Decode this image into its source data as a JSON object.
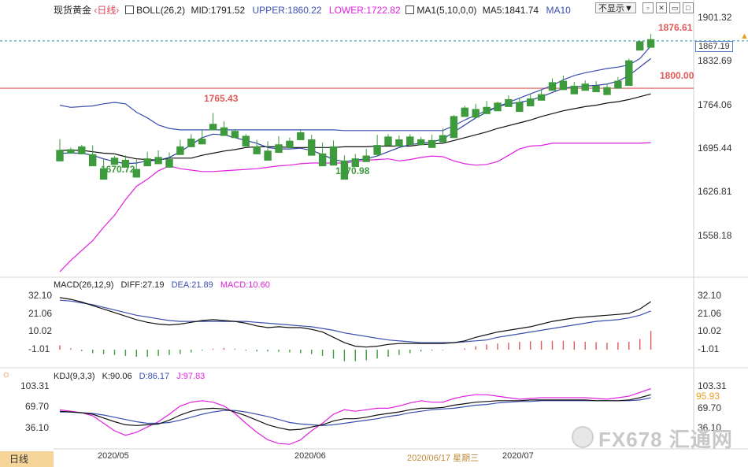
{
  "header": {
    "symbol": "现货黄金",
    "period": "日线",
    "boll": {
      "name": "BOLL(26,2)",
      "mid": "MID:1791.52",
      "upper": "UPPER:1860.22",
      "lower": "LOWER:1722.82"
    },
    "ma": {
      "name": "MA1(5,10,0,0)",
      "ma5": "MA5:1841.74",
      "ma10": "MA10"
    },
    "dropdown": "不显示▼",
    "toolbar_icons": [
      "checkbox-icon",
      "close-box-icon",
      "restore-icon",
      "maximize-icon"
    ]
  },
  "macd": {
    "name": "MACD(26,12,9)",
    "diff": "DIFF:27.19",
    "dea": "DEA:21.89",
    "macd": "MACD:10.60"
  },
  "kdj": {
    "name": "KDJ(9,3,3)",
    "k": "K:90.06",
    "d": "D:86.17",
    "j": "J:97.83"
  },
  "price_axis": [
    "1901.32",
    "1832.69",
    "1764.06",
    "1695.44",
    "1626.81",
    "1558.18"
  ],
  "macd_axis": [
    "32.10",
    "21.06",
    "10.02",
    "-1.01"
  ],
  "kdj_axis": [
    "103.31",
    "69.70",
    "36.10"
  ],
  "x_axis": [
    "2020/05",
    "2020/06",
    "2020/07"
  ],
  "labels": {
    "high_pre": "1765.43",
    "low1": "1670.72",
    "low2": "1670.98",
    "high_last": "1876.61",
    "level_1800": "1800.00",
    "current_price": "1867.19",
    "kdj_current": "95.93"
  },
  "footer": {
    "period_button": "日线",
    "crosshair_date": "2020/06/17 星期三"
  },
  "watermark": "FX678 汇通网",
  "colors": {
    "up": "#e05a5a",
    "down": "#3d9a3d",
    "upper": "#3a4fb0",
    "lower": "#e020e0",
    "mid": "#111111",
    "level": "#e05555"
  },
  "chart_data": {
    "type": "candlestick",
    "candles": [
      [
        1712,
        1728,
        1708,
        1697
      ],
      [
        1713,
        1716,
        1711,
        1708
      ],
      [
        1717,
        1720,
        1712,
        1707
      ],
      [
        1706,
        1719,
        1700,
        1690
      ],
      [
        1686,
        1700,
        1681,
        1671
      ],
      [
        1701,
        1704,
        1698,
        1692
      ],
      [
        1698,
        1705,
        1694,
        1688
      ],
      [
        1685,
        1699,
        1684,
        1674
      ],
      [
        1700,
        1710,
        1697,
        1690
      ],
      [
        1702,
        1712,
        1698,
        1693
      ],
      [
        1699,
        1709,
        1694,
        1688
      ],
      [
        1717,
        1727,
        1713,
        1706
      ],
      [
        1728,
        1735,
        1724,
        1717
      ],
      [
        1728,
        1741,
        1726,
        1721
      ],
      [
        1749,
        1765,
        1745,
        1741
      ],
      [
        1744,
        1753,
        1738,
        1733
      ],
      [
        1739,
        1742,
        1735,
        1730
      ],
      [
        1732,
        1735,
        1727,
        1718
      ],
      [
        1717,
        1727,
        1711,
        1707
      ],
      [
        1711,
        1725,
        1706,
        1698
      ],
      [
        1720,
        1732,
        1715,
        1709
      ],
      [
        1725,
        1730,
        1721,
        1716
      ],
      [
        1737,
        1742,
        1732,
        1727
      ],
      [
        1727,
        1734,
        1711,
        1705
      ],
      [
        1707,
        1723,
        1700,
        1690
      ],
      [
        1717,
        1726,
        1698,
        1691
      ],
      [
        1697,
        1705,
        1684,
        1671
      ],
      [
        1700,
        1707,
        1695,
        1689
      ],
      [
        1704,
        1714,
        1701,
        1696
      ],
      [
        1719,
        1734,
        1712,
        1706
      ],
      [
        1731,
        1735,
        1723,
        1719
      ],
      [
        1727,
        1733,
        1723,
        1718
      ],
      [
        1731,
        1735,
        1726,
        1720
      ],
      [
        1727,
        1731,
        1725,
        1720
      ],
      [
        1726,
        1734,
        1722,
        1716
      ],
      [
        1733,
        1743,
        1728,
        1724
      ],
      [
        1760,
        1762,
        1740,
        1730
      ],
      [
        1772,
        1775,
        1764,
        1760
      ],
      [
        1770,
        1778,
        1764,
        1759
      ],
      [
        1773,
        1782,
        1768,
        1764
      ],
      [
        1779,
        1781,
        1774,
        1768
      ],
      [
        1784,
        1790,
        1778,
        1774
      ],
      [
        1780,
        1786,
        1773,
        1767
      ],
      [
        1785,
        1792,
        1780,
        1775
      ],
      [
        1791,
        1797,
        1788,
        1783
      ],
      [
        1808,
        1814,
        1802,
        1797
      ],
      [
        1810,
        1818,
        1804,
        1798
      ],
      [
        1803,
        1809,
        1796,
        1792
      ],
      [
        1806,
        1811,
        1801,
        1797
      ],
      [
        1803,
        1810,
        1800,
        1795
      ],
      [
        1801,
        1806,
        1795,
        1791
      ],
      [
        1810,
        1816,
        1806,
        1800
      ],
      [
        1839,
        1842,
        1809,
        1804
      ],
      [
        1866,
        1867,
        1856,
        1854
      ],
      [
        1869,
        1877,
        1863,
        1858
      ]
    ],
    "candle_order": "open, high, low, close (approx; close>open = up)",
    "boll_upper": [
      1776,
      1773,
      1774,
      1775,
      1778,
      1780,
      1778,
      1766,
      1758,
      1748,
      1743,
      1741,
      1741,
      1741,
      1741,
      1741,
      1741,
      1741,
      1741,
      1741,
      1741,
      1741,
      1741,
      1741,
      1741,
      1741,
      1740,
      1740,
      1740,
      1740,
      1740,
      1740,
      1740,
      1740,
      1740,
      1740,
      1747,
      1755,
      1762,
      1768,
      1774,
      1780,
      1786,
      1792,
      1798,
      1804,
      1812,
      1818,
      1822,
      1825,
      1828,
      1830,
      1833,
      1842,
      1860
    ],
    "boll_mid": [
      1712,
      1712,
      1712,
      1710,
      1708,
      1707,
      1703,
      1700,
      1699,
      1698,
      1701,
      1701,
      1701,
      1705,
      1708,
      1711,
      1713,
      1716,
      1717,
      1717,
      1717,
      1716,
      1716,
      1716,
      1716,
      1716,
      1717,
      1717,
      1717,
      1718,
      1718,
      1718,
      1718,
      1720,
      1721,
      1722,
      1726,
      1730,
      1734,
      1738,
      1743,
      1747,
      1751,
      1755,
      1760,
      1764,
      1768,
      1771,
      1774,
      1776,
      1779,
      1781,
      1784,
      1788,
      1792
    ],
    "boll_lower": [
      1540,
      1556,
      1570,
      1584,
      1603,
      1620,
      1642,
      1661,
      1671,
      1683,
      1690,
      1686,
      1684,
      1682,
      1682,
      1683,
      1684,
      1685,
      1686,
      1688,
      1690,
      1691,
      1693,
      1694,
      1694,
      1694,
      1694,
      1696,
      1698,
      1699,
      1700,
      1697,
      1699,
      1702,
      1704,
      1703,
      1697,
      1693,
      1691,
      1692,
      1696,
      1705,
      1714,
      1718,
      1719,
      1722,
      1722,
      1722,
      1722,
      1722,
      1722,
      1722,
      1722,
      1722,
      1723
    ],
    "ma5": [
      1708,
      1708,
      1708,
      1705,
      1700,
      1696,
      1693,
      1694,
      1697,
      1698,
      1702,
      1710,
      1720,
      1730,
      1735,
      1734,
      1730,
      1726,
      1722,
      1716,
      1714,
      1714,
      1715,
      1712,
      1706,
      1699,
      1696,
      1698,
      1700,
      1704,
      1710,
      1716,
      1720,
      1722,
      1724,
      1728,
      1738,
      1748,
      1758,
      1766,
      1774,
      1778,
      1780,
      1783,
      1788,
      1794,
      1800,
      1802,
      1803,
      1804,
      1806,
      1810,
      1818,
      1830,
      1842
    ],
    "macd_diff": [
      29.5,
      28.5,
      27,
      25,
      23,
      21,
      19,
      17,
      15.5,
      14.5,
      14,
      14.5,
      15.5,
      16.5,
      17,
      16.5,
      16,
      15,
      13.5,
      12.5,
      13,
      12.5,
      12.5,
      11.5,
      10,
      7,
      4,
      2,
      1.5,
      2,
      3,
      3.5,
      3.5,
      3.5,
      3.5,
      3.5,
      4,
      5,
      7,
      8.5,
      10,
      11,
      12,
      13,
      14.5,
      16,
      17,
      18,
      18.5,
      19,
      19.5,
      20,
      20.5,
      23,
      27.2
    ],
    "macd_dea": [
      28,
      27.5,
      26.5,
      25.5,
      24,
      22.5,
      21,
      19.5,
      18.5,
      17.5,
      16.5,
      16,
      16,
      16,
      16,
      16,
      16,
      16,
      15.5,
      15,
      14.5,
      14,
      13.5,
      13,
      12,
      11,
      9.5,
      8.5,
      7.5,
      6.5,
      5.5,
      5,
      4.5,
      4,
      4,
      4,
      4,
      4.5,
      5,
      5.5,
      7,
      8,
      9,
      10,
      11,
      12,
      13,
      14,
      15,
      16,
      16.5,
      17,
      18,
      19.5,
      21.9
    ],
    "macd_hist": [
      2.5,
      0.8,
      -0.8,
      -2,
      -2.5,
      -3,
      -3.5,
      -4,
      -4,
      -3.5,
      -3,
      -2.5,
      -1.5,
      -0.5,
      0.5,
      1,
      0.5,
      -0.5,
      -1,
      -1,
      -1.2,
      -1.5,
      -2,
      -2.5,
      -3.5,
      -5,
      -6.5,
      -6.5,
      -6,
      -5,
      -4,
      -3,
      -2,
      -1,
      -0.5,
      -0.3,
      0,
      0.7,
      2,
      3,
      3.5,
      4,
      4.5,
      4.8,
      5,
      5,
      5,
      4.8,
      4.5,
      4.3,
      4,
      4.2,
      4.5,
      6,
      10.6
    ],
    "kdj_k": [
      68,
      67,
      66,
      64,
      59,
      54,
      50,
      49,
      50,
      51,
      56,
      63,
      68,
      71,
      72,
      71,
      67,
      62,
      56,
      50,
      46,
      43,
      44,
      47,
      50,
      55,
      58,
      58,
      60,
      63,
      65,
      67,
      70,
      72,
      72,
      73,
      76,
      78,
      80,
      81,
      82,
      82,
      82,
      83,
      83,
      83,
      83,
      83,
      83,
      82,
      82,
      82,
      83,
      86,
      90
    ],
    "kdj_d": [
      67,
      67,
      66,
      65,
      63,
      60,
      57,
      54,
      52,
      52,
      53,
      56,
      60,
      64,
      67,
      69,
      69,
      67,
      64,
      61,
      57,
      53,
      51,
      50,
      49,
      50,
      52,
      54,
      56,
      58,
      61,
      63,
      66,
      68,
      70,
      71,
      72,
      74,
      76,
      77,
      79,
      80,
      81,
      81,
      82,
      82,
      82,
      82,
      82,
      82,
      82,
      82,
      82,
      83,
      86
    ],
    "kdj_j": [
      70,
      68,
      66,
      62,
      52,
      42,
      36,
      40,
      47,
      54,
      64,
      75,
      80,
      82,
      80,
      75,
      65,
      52,
      40,
      30,
      25,
      24,
      30,
      42,
      52,
      64,
      70,
      68,
      70,
      72,
      72,
      75,
      79,
      82,
      80,
      80,
      85,
      88,
      90,
      90,
      88,
      86,
      84,
      85,
      86,
      86,
      86,
      86,
      86,
      85,
      84,
      86,
      88,
      93,
      98
    ],
    "ylim_price": [
      1540,
      1905
    ],
    "ylim_macd": [
      -8,
      33
    ],
    "ylim_kdj": [
      20,
      108
    ],
    "reference_line": 1800.0,
    "current_price": 1867.19
  }
}
